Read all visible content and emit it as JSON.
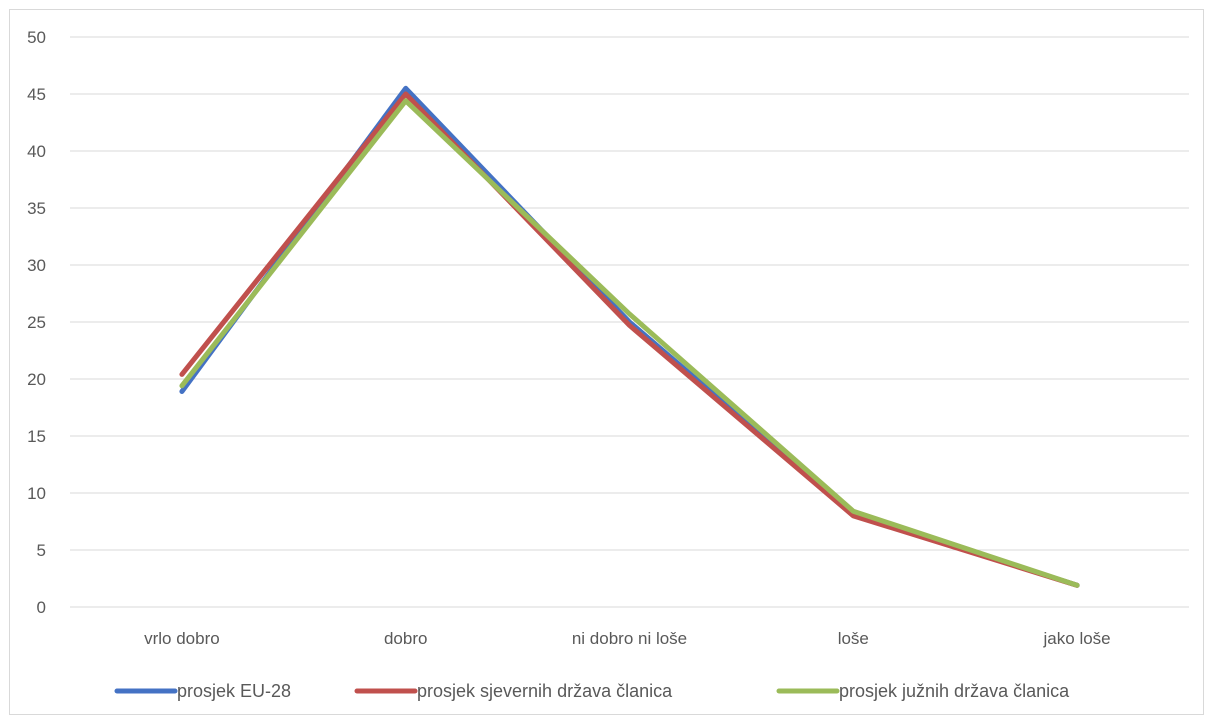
{
  "chart_data": {
    "type": "line",
    "categories": [
      "vrlo dobro",
      "dobro",
      "ni dobro ni loše",
      "loše",
      "jako loše"
    ],
    "ylim": [
      0,
      50
    ],
    "yticks": [
      0,
      5,
      10,
      15,
      20,
      25,
      30,
      35,
      40,
      45,
      50
    ],
    "grid": true,
    "legend_position": "bottom",
    "series": [
      {
        "name": "prosjek EU-28",
        "color": "#4472c4",
        "values": [
          18.9,
          45.5,
          25.0,
          8.2,
          1.9
        ]
      },
      {
        "name": "prosjek sjevernih država članica",
        "color": "#c0504d",
        "values": [
          20.4,
          45.0,
          24.7,
          8.0,
          1.9
        ]
      },
      {
        "name": "prosjek južnih država članica",
        "color": "#9bbb59",
        "values": [
          19.4,
          44.4,
          25.7,
          8.4,
          1.9
        ]
      }
    ]
  }
}
